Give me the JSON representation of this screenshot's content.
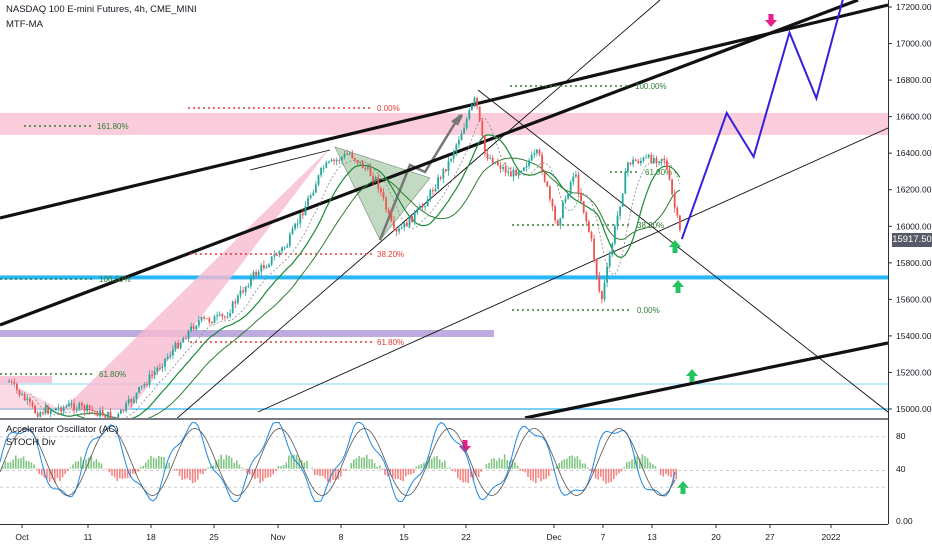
{
  "header": {
    "title": "NASDAQ 100 E-mini Futures, 4h, CME_MINI",
    "indicator": "MTF-MA"
  },
  "lower_pane": {
    "indicator1": "Accelerator Oscillator (AC)",
    "indicator2": "STOCH Div",
    "ticks": [
      "80",
      "40",
      "0.00"
    ]
  },
  "price_axis": {
    "ticks": [
      "17200.00",
      "17000.00",
      "16800.00",
      "16600.00",
      "16400.00",
      "16200.00",
      "16000.00",
      "15800.00",
      "15600.00",
      "15400.00",
      "15200.00",
      "15000.00"
    ],
    "current_price": "15917.50"
  },
  "time_axis": {
    "ticks": [
      "Oct",
      "11",
      "18",
      "25",
      "Nov",
      "8",
      "15",
      "22",
      "Dec",
      "7",
      "13",
      "20",
      "27",
      "2022"
    ]
  },
  "fib_labels": {
    "fib_0": "0.00%",
    "fib_161": "161.80%",
    "fib_100_top": "100.00%",
    "fib_61_a": "61.80%",
    "fib_38_a": "38.20%",
    "fib_61_b": "61.80%",
    "fib_100_left": "100.00%",
    "fib_61_c": "61.80%",
    "fib_38_b": "38.20%",
    "fib_0_b": "0.00%"
  },
  "colors": {
    "up": "#26a69a",
    "down": "#ef5350",
    "projection": "#3322dd",
    "zone_pink": "#f8bbd0",
    "line_blue": "#29b6f6",
    "band_purple": "#b39ddb",
    "arrow_green": "#22c55e",
    "arrow_magenta": "#e91e8c"
  },
  "chart_data": {
    "type": "candlestick",
    "title": "NASDAQ 100 E-mini Futures, 4h, CME_MINI",
    "ylim": [
      14950,
      17260
    ],
    "price_ticks": [
      17200,
      17000,
      16800,
      16600,
      16400,
      16200,
      16000,
      15800,
      15600,
      15400,
      15200,
      15000
    ],
    "last_price": 15917.5,
    "time_labels": [
      "Oct",
      "11",
      "18",
      "25",
      "Nov",
      "8",
      "15",
      "22",
      "Dec",
      "7",
      "13",
      "20",
      "27",
      "2022"
    ],
    "series_path": [
      {
        "t": "Oct 1",
        "price": 15150
      },
      {
        "t": "Oct 4",
        "price": 14980
      },
      {
        "t": "Oct 8",
        "price": 15020
      },
      {
        "t": "Oct 13",
        "price": 14950
      },
      {
        "t": "Oct 18",
        "price": 15250
      },
      {
        "t": "Oct 22",
        "price": 15480
      },
      {
        "t": "Oct 25",
        "price": 15500
      },
      {
        "t": "Oct 28",
        "price": 15720
      },
      {
        "t": "Nov 1",
        "price": 15900
      },
      {
        "t": "Nov 5",
        "price": 16320
      },
      {
        "t": "Nov 8",
        "price": 16400
      },
      {
        "t": "Nov 11",
        "price": 16250
      },
      {
        "t": "Nov 13",
        "price": 15950
      },
      {
        "t": "Nov 16",
        "price": 16100
      },
      {
        "t": "Nov 19",
        "price": 16350
      },
      {
        "t": "Nov 22",
        "price": 16700
      },
      {
        "t": "Nov 23",
        "price": 16400
      },
      {
        "t": "Nov 26",
        "price": 16280
      },
      {
        "t": "Nov 29",
        "price": 16400
      },
      {
        "t": "Dec 1",
        "price": 16000
      },
      {
        "t": "Dec 3",
        "price": 16300
      },
      {
        "t": "Dec 5",
        "price": 15900
      },
      {
        "t": "Dec 6",
        "price": 15580
      },
      {
        "t": "Dec 7",
        "price": 15850
      },
      {
        "t": "Dec 9",
        "price": 16350
      },
      {
        "t": "Dec 13",
        "price": 16380
      },
      {
        "t": "Dec 15",
        "price": 15917.5
      }
    ],
    "projection": [
      {
        "t": "Dec 15",
        "price": 15930
      },
      {
        "t": "Dec 20",
        "price": 16620
      },
      {
        "t": "Dec 23",
        "price": 16380
      },
      {
        "t": "Dec 27",
        "price": 17060
      },
      {
        "t": "Dec 30",
        "price": 16700
      },
      {
        "t": "Jan 2",
        "price": 17250
      }
    ],
    "zones": [
      {
        "name": "resistance",
        "from": 16500,
        "to": 16620
      },
      {
        "name": "support",
        "price": 15720
      }
    ],
    "oscillator": {
      "ylim": [
        0,
        100
      ],
      "ticks": [
        80,
        40,
        0
      ]
    }
  }
}
